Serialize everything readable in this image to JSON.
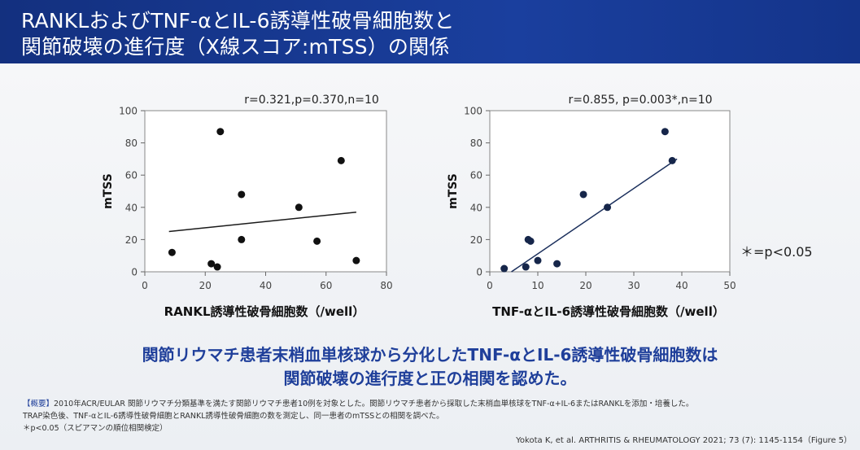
{
  "header": {
    "title_line1": "RANKLおよびTNF-αとIL-6誘導性破骨細胞数と",
    "title_line2": "関節破壊の進行度（X線スコア:mTSS）の関係"
  },
  "chart_data": [
    {
      "type": "scatter",
      "annotation": "r=0.321,p=0.370,n=10",
      "xlabel": "RANKL誘導性破骨細胞数（/well）",
      "ylabel": "mTSS",
      "xlim": [
        0,
        80
      ],
      "ylim": [
        0,
        100
      ],
      "xticks": [
        0,
        20,
        40,
        60,
        80
      ],
      "yticks": [
        0,
        20,
        40,
        60,
        80,
        100
      ],
      "x": [
        9,
        22,
        24,
        25,
        32,
        32,
        51,
        57,
        65,
        70
      ],
      "y": [
        12,
        5,
        3,
        87,
        48,
        20,
        40,
        19,
        69,
        7
      ],
      "trendline": [
        [
          8,
          25
        ],
        [
          70,
          37
        ]
      ]
    },
    {
      "type": "scatter",
      "annotation": "r=0.855, p=0.003*,n=10",
      "xlabel": "TNF-αとIL-6誘導性破骨細胞数（/well）",
      "ylabel": "mTSS",
      "xlim": [
        0,
        50
      ],
      "ylim": [
        0,
        100
      ],
      "xticks": [
        0,
        10,
        20,
        30,
        40,
        50
      ],
      "yticks": [
        0,
        20,
        40,
        60,
        80,
        100
      ],
      "x": [
        3,
        7.5,
        8,
        8.5,
        10,
        14,
        19.5,
        24.5,
        36.5,
        38
      ],
      "y": [
        2,
        3,
        20,
        19,
        7,
        5,
        48,
        40,
        87,
        69
      ],
      "trendline": [
        [
          4.5,
          0
        ],
        [
          39,
          70
        ]
      ]
    }
  ],
  "significance_note": "＊=p<0.05",
  "conclusion": {
    "line1": "関節リウマチ患者末梢血単核球から分化したTNF-αとIL-6誘導性破骨細胞数は",
    "line2": "関節破壊の進行度と正の相関を認めた。"
  },
  "notes": {
    "summary_tag": "【概要】",
    "summary": "2010年ACR/EULAR 関節リウマチ分類基準を満たす関節リウマチ患者10例を対象とした。関節リウマチ患者から採取した末梢血単核球をTNF-α+IL-6またはRANKLを添加・培養した。",
    "line2": "TRAP染色後、TNF-αとIL-6誘導性破骨細胞とRANKL誘導性破骨細胞の数を測定し、同一患者のmTSSとの相関を調べた。",
    "line3": "＊p<0.05（スピアマンの順位相関検定）"
  },
  "citation": "Yokota K, et al. ARTHRITIS & RHEUMATOLOGY 2021; 73 (7): 1145-1154（Figure 5）"
}
